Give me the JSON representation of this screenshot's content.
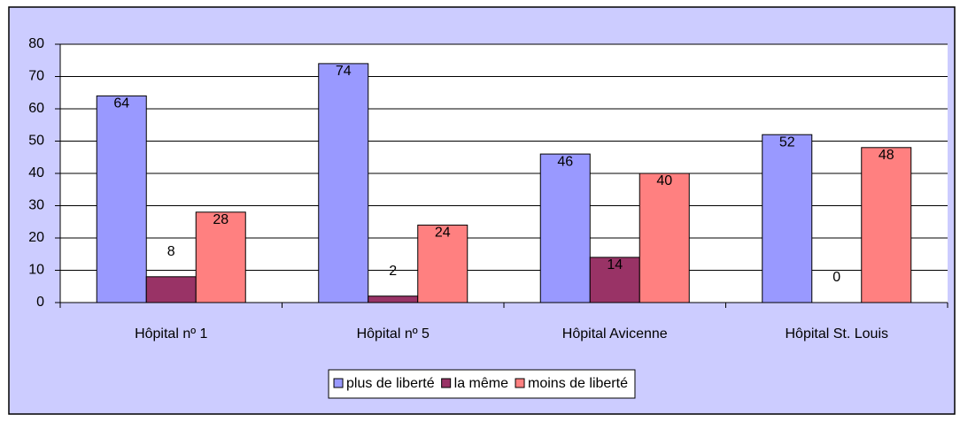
{
  "chart_data": {
    "type": "bar",
    "categories": [
      "Hôpital nº 1",
      "Hôpital nº 5",
      "Hôpital Avicenne",
      "Hôpital St. Louis"
    ],
    "series": [
      {
        "name": "plus de liberté",
        "color": "#9999ff",
        "values": [
          64,
          74,
          46,
          52
        ]
      },
      {
        "name": "la même",
        "color": "#993366",
        "values": [
          8,
          2,
          14,
          0
        ]
      },
      {
        "name": "moins de liberté",
        "color": "#ff8080",
        "values": [
          28,
          24,
          40,
          48
        ]
      }
    ],
    "ylim": [
      0,
      80
    ],
    "yticks": [
      0,
      10,
      20,
      30,
      40,
      50,
      60,
      70,
      80
    ],
    "grid": true,
    "legend": "bottom"
  }
}
